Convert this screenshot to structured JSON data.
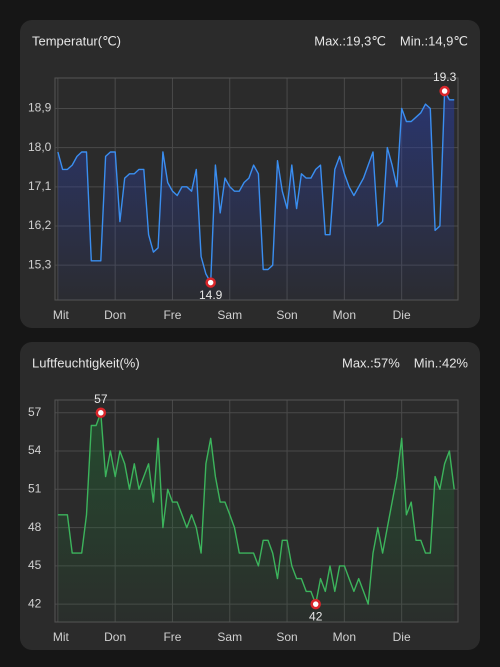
{
  "chart_data": [
    {
      "type": "line",
      "title": "Temperatur(℃)",
      "max_label": "Max.:19,3℃",
      "min_label": "Min.:14,9℃",
      "color": "#3a8ef0",
      "grid": true,
      "values": [
        17.9,
        17.5,
        17.5,
        17.6,
        17.8,
        17.9,
        17.9,
        15.4,
        15.4,
        15.4,
        17.8,
        17.9,
        17.9,
        16.3,
        17.3,
        17.4,
        17.4,
        17.5,
        17.5,
        16.0,
        15.6,
        15.7,
        17.9,
        17.2,
        17.0,
        16.9,
        17.1,
        17.1,
        17.0,
        17.5,
        15.5,
        15.1,
        14.9,
        17.6,
        16.5,
        17.3,
        17.1,
        17.0,
        17.0,
        17.2,
        17.3,
        17.6,
        17.4,
        15.2,
        15.2,
        15.3,
        17.7,
        17.0,
        16.6,
        17.6,
        16.6,
        17.4,
        17.3,
        17.3,
        17.5,
        17.6,
        16.0,
        16.0,
        17.5,
        17.8,
        17.4,
        17.1,
        16.9,
        17.1,
        17.3,
        17.6,
        17.9,
        16.2,
        16.3,
        18.0,
        17.6,
        17.1,
        18.9,
        18.6,
        18.6,
        18.7,
        18.8,
        19.0,
        18.9,
        16.1,
        16.2,
        19.3,
        19.1,
        19.1
      ],
      "xlim": [
        -0.6,
        83.8
      ],
      "xticks": [
        {
          "value": 0,
          "label": "Mit"
        },
        {
          "value": 12,
          "label": "Don"
        },
        {
          "value": 24,
          "label": "Fre"
        },
        {
          "value": 36,
          "label": "Sam"
        },
        {
          "value": 48,
          "label": "Son"
        },
        {
          "value": 60,
          "label": "Mon"
        },
        {
          "value": 72,
          "label": "Die"
        }
      ],
      "ylim": [
        14.5,
        19.6
      ],
      "yticks": [
        {
          "value": 18.9,
          "label": "18,9"
        },
        {
          "value": 18.0,
          "label": "18,0"
        },
        {
          "value": 17.1,
          "label": "17,1"
        },
        {
          "value": 16.2,
          "label": "16,2"
        },
        {
          "value": 15.3,
          "label": "15,3"
        }
      ],
      "annotations": [
        {
          "x": 81,
          "y": 19.3,
          "position": "above"
        },
        {
          "x": 32,
          "y": 14.9,
          "position": "below"
        }
      ]
    },
    {
      "type": "line",
      "title": "Luftfeuchtigkeit(%)",
      "max_label": "Max.:57%",
      "min_label": "Min.:42%",
      "color": "#3cb45c",
      "grid": true,
      "values": [
        49,
        49,
        49,
        46,
        46,
        46,
        49,
        56,
        56,
        57,
        52,
        54,
        52,
        54,
        53,
        51,
        53,
        51,
        52,
        53,
        50,
        55,
        48,
        51,
        50,
        50,
        49,
        48,
        49,
        48,
        46,
        53,
        55,
        52,
        50,
        50,
        49,
        48,
        46,
        46,
        46,
        46,
        45,
        47,
        47,
        46,
        44,
        47,
        47,
        45,
        44,
        44,
        43,
        43,
        42,
        44,
        43,
        45,
        43,
        45,
        45,
        44,
        43,
        44,
        43,
        42,
        46,
        48,
        46,
        48,
        50,
        52,
        55,
        49,
        50,
        47,
        47,
        46,
        46,
        52,
        51,
        53,
        54,
        51
      ],
      "xlim": [
        -0.6,
        83.8
      ],
      "xticks": [
        {
          "value": 0,
          "label": "Mit"
        },
        {
          "value": 12,
          "label": "Don"
        },
        {
          "value": 24,
          "label": "Fre"
        },
        {
          "value": 36,
          "label": "Sam"
        },
        {
          "value": 48,
          "label": "Son"
        },
        {
          "value": 60,
          "label": "Mon"
        },
        {
          "value": 72,
          "label": "Die"
        }
      ],
      "ylim": [
        40.6,
        58.0
      ],
      "yticks": [
        57,
        54,
        51,
        48,
        45,
        42
      ],
      "annotations": [
        {
          "x": 9,
          "y": 57,
          "position": "above"
        },
        {
          "x": 54,
          "y": 42,
          "position": "below"
        }
      ]
    }
  ]
}
